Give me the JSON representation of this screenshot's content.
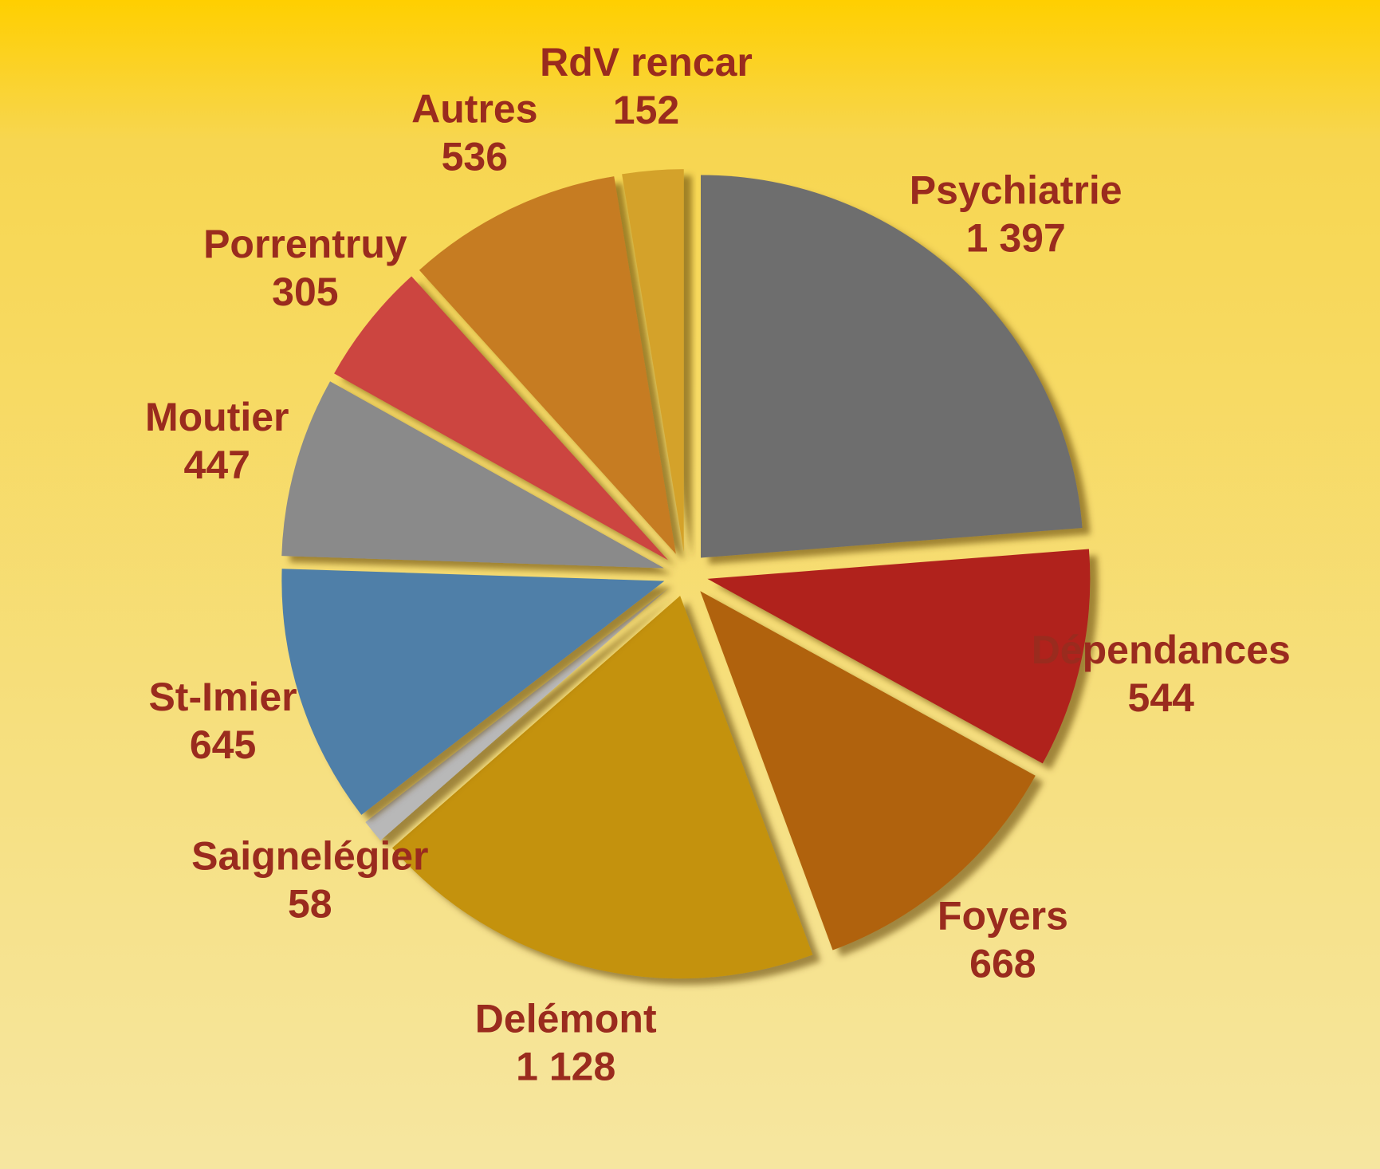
{
  "chart_data": {
    "type": "pie",
    "categories": [
      "Psychiatrie",
      "Dépendances",
      "Foyers",
      "Delémont",
      "Saignelégier",
      "St-Imier",
      "Moutier",
      "Porrentruy",
      "Autres",
      "RdV rencar"
    ],
    "values": [
      1397,
      544,
      668,
      1128,
      58,
      645,
      447,
      305,
      536,
      152
    ],
    "value_labels": [
      "1 397",
      "544",
      "668",
      "1 128",
      "58",
      "645",
      "447",
      "305",
      "536",
      "152"
    ],
    "colors": [
      "#6e6e6e",
      "#b0241e",
      "#b0620a",
      "#c4920e",
      "#b8b8b8",
      "#4f7fa8",
      "#8a8a8a",
      "#cc4441",
      "#c67c22",
      "#d4a22a"
    ]
  }
}
